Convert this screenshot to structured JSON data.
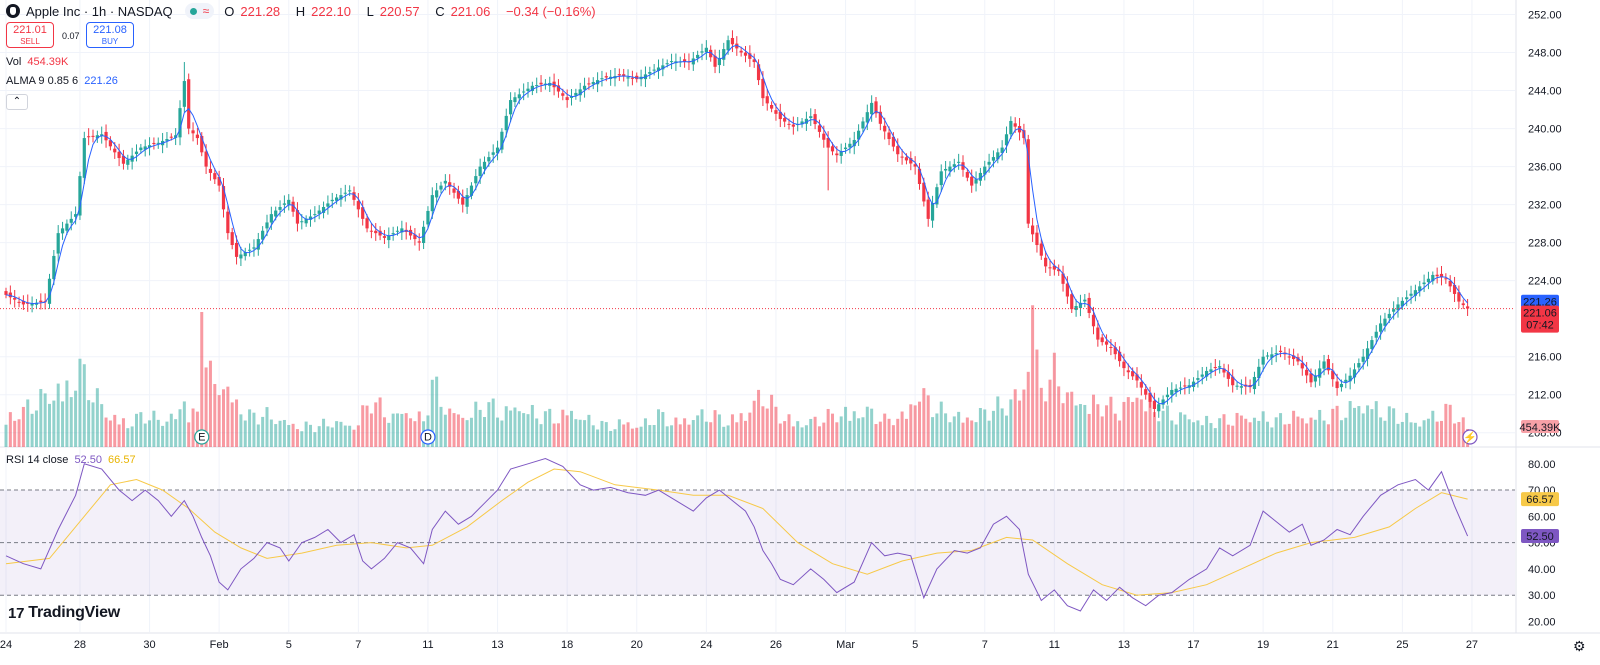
{
  "header": {
    "symbol": "Apple Inc · 1h · NASDAQ",
    "open_label": "O",
    "open": "221.28",
    "high_label": "H",
    "high": "222.10",
    "low_label": "L",
    "low": "220.57",
    "close_label": "C",
    "close": "221.06",
    "change": "−0.34 (−0.16%)"
  },
  "trade": {
    "sell_price": "221.01",
    "sell_label": "SELL",
    "spread": "0.07",
    "buy_price": "221.08",
    "buy_label": "BUY"
  },
  "volume_legend": {
    "label": "Vol",
    "value": "454.39K"
  },
  "alma_legend": {
    "label": "ALMA 9 0.85 6",
    "value": "221.26"
  },
  "rsi_legend": {
    "label": "RSI 14 close",
    "value1": "52.50",
    "value2": "66.57"
  },
  "brand": "TradingView",
  "colors": {
    "up": "#26a69a",
    "down": "#f23645",
    "alma": "#2962ff",
    "rsi": "#7e57c2",
    "rsi_ma": "#f7c948"
  },
  "chart_data": {
    "type": "candlestick",
    "title": "Apple Inc · 1h · NASDAQ",
    "price_ticks": [
      "252.00",
      "248.00",
      "244.00",
      "240.00",
      "236.00",
      "232.00",
      "228.00",
      "224.00",
      "216.00",
      "212.00",
      "208.00"
    ],
    "price_range": [
      206.5,
      253.0
    ],
    "price_badges": {
      "alma": "221.26",
      "last": "221.06",
      "countdown": "07:42",
      "volume": "454.39K"
    },
    "x_ticks": [
      {
        "label": "24",
        "i": 0
      },
      {
        "label": "28",
        "i": 17
      },
      {
        "label": "30",
        "i": 33
      },
      {
        "label": "Feb",
        "i": 49
      },
      {
        "label": "5",
        "i": 65
      },
      {
        "label": "7",
        "i": 81
      },
      {
        "label": "11",
        "i": 97
      },
      {
        "label": "13",
        "i": 113
      },
      {
        "label": "18",
        "i": 129
      },
      {
        "label": "20",
        "i": 145
      },
      {
        "label": "24",
        "i": 161
      },
      {
        "label": "26",
        "i": 177
      },
      {
        "label": "Mar",
        "i": 193
      },
      {
        "label": "5",
        "i": 209
      },
      {
        "label": "7",
        "i": 225
      },
      {
        "label": "11",
        "i": 241
      },
      {
        "label": "13",
        "i": 257
      },
      {
        "label": "17",
        "i": 273
      },
      {
        "label": "19",
        "i": 289
      },
      {
        "label": "21",
        "i": 305
      },
      {
        "label": "25",
        "i": 321
      },
      {
        "label": "27",
        "i": 337
      }
    ],
    "close_path": [
      [
        0,
        222.5
      ],
      [
        4,
        221.5
      ],
      [
        9,
        221.8
      ],
      [
        12,
        229
      ],
      [
        16,
        231
      ],
      [
        18,
        239
      ],
      [
        22,
        239.4
      ],
      [
        25,
        237.5
      ],
      [
        27,
        236.3
      ],
      [
        31,
        238
      ],
      [
        35,
        238.5
      ],
      [
        39,
        239.3
      ],
      [
        41,
        245
      ],
      [
        42,
        240
      ],
      [
        44,
        239
      ],
      [
        46,
        236
      ],
      [
        49,
        234
      ],
      [
        51,
        229
      ],
      [
        53,
        226.5
      ],
      [
        57,
        227.5
      ],
      [
        61,
        231
      ],
      [
        65,
        232.5
      ],
      [
        67,
        230
      ],
      [
        71,
        231
      ],
      [
        75,
        232.5
      ],
      [
        79,
        233.5
      ],
      [
        83,
        229.5
      ],
      [
        87,
        228.5
      ],
      [
        91,
        229.5
      ],
      [
        95,
        228
      ],
      [
        98,
        233
      ],
      [
        101,
        234.5
      ],
      [
        105,
        232
      ],
      [
        109,
        236
      ],
      [
        113,
        238
      ],
      [
        116,
        243
      ],
      [
        121,
        244.5
      ],
      [
        125,
        244.8
      ],
      [
        129,
        243
      ],
      [
        133,
        244.5
      ],
      [
        137,
        245.3
      ],
      [
        141,
        245.6
      ],
      [
        145,
        245.2
      ],
      [
        149,
        246.2
      ],
      [
        153,
        247.1
      ],
      [
        157,
        247
      ],
      [
        161,
        248.5
      ],
      [
        163,
        246.5
      ],
      [
        166,
        249.3
      ],
      [
        169,
        248
      ],
      [
        172,
        247
      ],
      [
        174,
        243.2
      ],
      [
        178,
        241
      ],
      [
        181,
        240.2
      ],
      [
        185,
        241.3
      ],
      [
        189,
        238
      ],
      [
        191,
        237.2
      ],
      [
        195,
        238.8
      ],
      [
        199,
        242.7
      ],
      [
        201,
        240.5
      ],
      [
        205,
        237.3
      ],
      [
        209,
        236
      ],
      [
        212,
        230.5
      ],
      [
        215,
        235.5
      ],
      [
        219,
        236.5
      ],
      [
        222,
        234
      ],
      [
        225,
        236
      ],
      [
        229,
        238
      ],
      [
        231,
        240.8
      ],
      [
        234,
        239
      ],
      [
        235,
        230
      ],
      [
        239,
        225.5
      ],
      [
        242,
        225
      ],
      [
        245,
        221
      ],
      [
        248,
        222
      ],
      [
        251,
        217.8
      ],
      [
        254,
        217
      ],
      [
        257,
        214.8
      ],
      [
        260,
        213.5
      ],
      [
        262,
        212
      ],
      [
        264,
        210.5
      ],
      [
        268,
        212.5
      ],
      [
        272,
        213
      ],
      [
        276,
        214.5
      ],
      [
        279,
        215
      ],
      [
        282,
        213
      ],
      [
        286,
        212.8
      ],
      [
        289,
        216
      ],
      [
        293,
        216.5
      ],
      [
        297,
        215.5
      ],
      [
        300,
        213.3
      ],
      [
        303,
        215.5
      ],
      [
        306,
        212.7
      ],
      [
        309,
        214
      ],
      [
        312,
        216
      ],
      [
        316,
        219.5
      ],
      [
        320,
        221.5
      ],
      [
        324,
        223
      ],
      [
        328,
        224.6
      ],
      [
        331,
        224.2
      ],
      [
        334,
        221.8
      ],
      [
        336,
        221.06
      ]
    ],
    "alma_color": "#2962ff",
    "volume_axis_badge": "454.39K",
    "events": [
      {
        "i": 45,
        "label": "E"
      },
      {
        "i": 97,
        "label": "D"
      }
    ],
    "rsi": {
      "ticks": [
        "80.00",
        "70.00",
        "60.00",
        "50.00",
        "40.00",
        "30.00",
        "20.00"
      ],
      "levels": [
        70,
        50,
        30
      ],
      "range": [
        16,
        86
      ],
      "path": [
        [
          0,
          45
        ],
        [
          4,
          42
        ],
        [
          8,
          40
        ],
        [
          12,
          55
        ],
        [
          16,
          68
        ],
        [
          18,
          80
        ],
        [
          22,
          78
        ],
        [
          26,
          70
        ],
        [
          29,
          66
        ],
        [
          32,
          70
        ],
        [
          35,
          66
        ],
        [
          38,
          60
        ],
        [
          41,
          66
        ],
        [
          43,
          60
        ],
        [
          45,
          52
        ],
        [
          47,
          45
        ],
        [
          49,
          35
        ],
        [
          51,
          32
        ],
        [
          54,
          40
        ],
        [
          57,
          44
        ],
        [
          60,
          50
        ],
        [
          63,
          48
        ],
        [
          65,
          43
        ],
        [
          68,
          50
        ],
        [
          71,
          52
        ],
        [
          74,
          55
        ],
        [
          77,
          50
        ],
        [
          80,
          53
        ],
        [
          82,
          43
        ],
        [
          84,
          40
        ],
        [
          87,
          44
        ],
        [
          90,
          50
        ],
        [
          93,
          48
        ],
        [
          96,
          42
        ],
        [
          98,
          55
        ],
        [
          101,
          62
        ],
        [
          104,
          57
        ],
        [
          107,
          60
        ],
        [
          110,
          65
        ],
        [
          113,
          70
        ],
        [
          116,
          78
        ],
        [
          120,
          80
        ],
        [
          124,
          82
        ],
        [
          128,
          79
        ],
        [
          132,
          72
        ],
        [
          135,
          70
        ],
        [
          139,
          71
        ],
        [
          143,
          69
        ],
        [
          147,
          68
        ],
        [
          150,
          70
        ],
        [
          154,
          66
        ],
        [
          158,
          62
        ],
        [
          161,
          67
        ],
        [
          164,
          70
        ],
        [
          167,
          66
        ],
        [
          170,
          62
        ],
        [
          172,
          56
        ],
        [
          174,
          47
        ],
        [
          176,
          42
        ],
        [
          178,
          36
        ],
        [
          181,
          34
        ],
        [
          185,
          40
        ],
        [
          188,
          36
        ],
        [
          191,
          31
        ],
        [
          195,
          35
        ],
        [
          199,
          50
        ],
        [
          202,
          45
        ],
        [
          205,
          46
        ],
        [
          208,
          45
        ],
        [
          211,
          29
        ],
        [
          214,
          40
        ],
        [
          218,
          47
        ],
        [
          221,
          46
        ],
        [
          224,
          48
        ],
        [
          227,
          57
        ],
        [
          230,
          60
        ],
        [
          233,
          55
        ],
        [
          235,
          38
        ],
        [
          238,
          28
        ],
        [
          241,
          32
        ],
        [
          244,
          26
        ],
        [
          247,
          24
        ],
        [
          250,
          32
        ],
        [
          253,
          28
        ],
        [
          256,
          33
        ],
        [
          259,
          29
        ],
        [
          262,
          26
        ],
        [
          265,
          30
        ],
        [
          268,
          31
        ],
        [
          272,
          36
        ],
        [
          276,
          40
        ],
        [
          279,
          48
        ],
        [
          282,
          45
        ],
        [
          286,
          49
        ],
        [
          289,
          62
        ],
        [
          292,
          58
        ],
        [
          295,
          54
        ],
        [
          298,
          57
        ],
        [
          300,
          49
        ],
        [
          303,
          51
        ],
        [
          306,
          55
        ],
        [
          309,
          53
        ],
        [
          312,
          60
        ],
        [
          316,
          68
        ],
        [
          320,
          72
        ],
        [
          324,
          74
        ],
        [
          327,
          70
        ],
        [
          330,
          77
        ],
        [
          333,
          64
        ],
        [
          336,
          52.5
        ]
      ],
      "ma_path": [
        [
          0,
          42
        ],
        [
          10,
          44
        ],
        [
          18,
          60
        ],
        [
          24,
          72
        ],
        [
          30,
          74
        ],
        [
          36,
          70
        ],
        [
          42,
          63
        ],
        [
          48,
          54
        ],
        [
          54,
          48
        ],
        [
          60,
          44
        ],
        [
          68,
          46
        ],
        [
          76,
          49
        ],
        [
          84,
          50
        ],
        [
          92,
          48
        ],
        [
          98,
          49
        ],
        [
          106,
          56
        ],
        [
          114,
          66
        ],
        [
          120,
          73
        ],
        [
          126,
          78
        ],
        [
          132,
          77
        ],
        [
          140,
          72
        ],
        [
          150,
          70
        ],
        [
          158,
          68
        ],
        [
          166,
          68
        ],
        [
          174,
          63
        ],
        [
          182,
          50
        ],
        [
          190,
          42
        ],
        [
          198,
          38
        ],
        [
          206,
          43
        ],
        [
          214,
          46
        ],
        [
          222,
          47
        ],
        [
          230,
          52
        ],
        [
          236,
          51
        ],
        [
          244,
          42
        ],
        [
          252,
          34
        ],
        [
          260,
          30
        ],
        [
          268,
          31
        ],
        [
          276,
          34
        ],
        [
          284,
          40
        ],
        [
          292,
          46
        ],
        [
          300,
          50
        ],
        [
          310,
          52
        ],
        [
          318,
          56
        ],
        [
          324,
          63
        ],
        [
          330,
          69
        ],
        [
          336,
          66.57
        ]
      ]
    },
    "volume_profile": [
      [
        0,
        0.3
      ],
      [
        4,
        0.35
      ],
      [
        8,
        0.45
      ],
      [
        11,
        0.55
      ],
      [
        14,
        0.6
      ],
      [
        17,
        0.75
      ],
      [
        20,
        0.5
      ],
      [
        24,
        0.3
      ],
      [
        28,
        0.25
      ],
      [
        32,
        0.3
      ],
      [
        36,
        0.25
      ],
      [
        40,
        0.35
      ],
      [
        44,
        0.3
      ],
      [
        45,
        1.0
      ],
      [
        47,
        0.65
      ],
      [
        50,
        0.6
      ],
      [
        53,
        0.45
      ],
      [
        56,
        0.3
      ],
      [
        60,
        0.3
      ],
      [
        64,
        0.25
      ],
      [
        68,
        0.2
      ],
      [
        72,
        0.2
      ],
      [
        76,
        0.25
      ],
      [
        80,
        0.2
      ],
      [
        84,
        0.45
      ],
      [
        88,
        0.3
      ],
      [
        92,
        0.35
      ],
      [
        96,
        0.25
      ],
      [
        98,
        0.6
      ],
      [
        102,
        0.35
      ],
      [
        106,
        0.3
      ],
      [
        110,
        0.4
      ],
      [
        114,
        0.35
      ],
      [
        118,
        0.4
      ],
      [
        122,
        0.3
      ],
      [
        126,
        0.3
      ],
      [
        130,
        0.35
      ],
      [
        134,
        0.25
      ],
      [
        138,
        0.2
      ],
      [
        142,
        0.25
      ],
      [
        146,
        0.2
      ],
      [
        150,
        0.3
      ],
      [
        154,
        0.25
      ],
      [
        158,
        0.3
      ],
      [
        162,
        0.3
      ],
      [
        166,
        0.25
      ],
      [
        170,
        0.35
      ],
      [
        174,
        0.5
      ],
      [
        178,
        0.3
      ],
      [
        182,
        0.25
      ],
      [
        186,
        0.25
      ],
      [
        190,
        0.3
      ],
      [
        194,
        0.35
      ],
      [
        198,
        0.35
      ],
      [
        202,
        0.25
      ],
      [
        206,
        0.3
      ],
      [
        210,
        0.55
      ],
      [
        214,
        0.35
      ],
      [
        218,
        0.3
      ],
      [
        222,
        0.3
      ],
      [
        226,
        0.35
      ],
      [
        230,
        0.4
      ],
      [
        234,
        0.6
      ],
      [
        236,
        1.05
      ],
      [
        238,
        0.55
      ],
      [
        241,
        0.7
      ],
      [
        244,
        0.5
      ],
      [
        248,
        0.45
      ],
      [
        252,
        0.4
      ],
      [
        256,
        0.35
      ],
      [
        260,
        0.55
      ],
      [
        264,
        0.35
      ],
      [
        268,
        0.3
      ],
      [
        272,
        0.3
      ],
      [
        276,
        0.25
      ],
      [
        280,
        0.25
      ],
      [
        284,
        0.3
      ],
      [
        288,
        0.3
      ],
      [
        292,
        0.25
      ],
      [
        296,
        0.3
      ],
      [
        300,
        0.3
      ],
      [
        304,
        0.3
      ],
      [
        308,
        0.35
      ],
      [
        312,
        0.45
      ],
      [
        316,
        0.35
      ],
      [
        320,
        0.3
      ],
      [
        324,
        0.25
      ],
      [
        328,
        0.3
      ],
      [
        332,
        0.35
      ],
      [
        336,
        0.2
      ]
    ]
  }
}
